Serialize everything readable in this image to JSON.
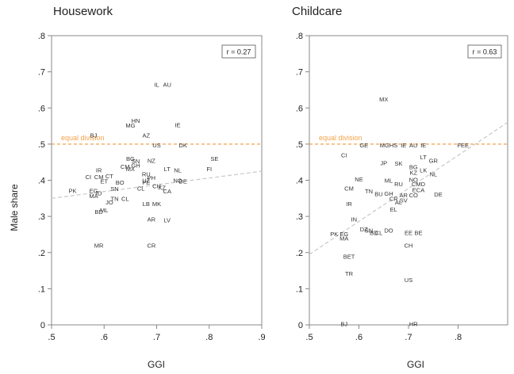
{
  "figure": {
    "ylabel": "Male share",
    "colors": {
      "ref_line": "#f5a24a",
      "fit_line": "#c8c8c8",
      "frame": "#888888",
      "text": "#222222"
    }
  },
  "chart_data": [
    {
      "type": "scatter",
      "title": "Housework",
      "xlabel": "GGI",
      "ylabel": "Male share",
      "xlim": [
        0.5,
        0.9
      ],
      "ylim": [
        0,
        0.8
      ],
      "xticks": [
        ".5",
        ".6",
        ".7",
        ".8",
        ".9"
      ],
      "yticks": [
        "0",
        ".1",
        ".2",
        ".3",
        ".4",
        ".5",
        ".6",
        ".7",
        ".8"
      ],
      "annotation": "r = 0.27",
      "reference_line": {
        "y": 0.5,
        "label": "equal division"
      },
      "fit_line": {
        "x": [
          0.5,
          0.9
        ],
        "y": [
          0.35,
          0.425
        ]
      },
      "points": [
        {
          "label": "IL",
          "x": 0.7,
          "y": 0.665
        },
        {
          "label": "AU",
          "x": 0.72,
          "y": 0.665
        },
        {
          "label": "HN",
          "x": 0.66,
          "y": 0.565
        },
        {
          "label": "MG",
          "x": 0.65,
          "y": 0.552
        },
        {
          "label": "IE",
          "x": 0.74,
          "y": 0.553
        },
        {
          "label": "BJ",
          "x": 0.58,
          "y": 0.525
        },
        {
          "label": "AZ",
          "x": 0.68,
          "y": 0.525
        },
        {
          "label": "US",
          "x": 0.7,
          "y": 0.497
        },
        {
          "label": "DK",
          "x": 0.75,
          "y": 0.497
        },
        {
          "label": "SE",
          "x": 0.81,
          "y": 0.46
        },
        {
          "label": "FI",
          "x": 0.8,
          "y": 0.432
        },
        {
          "label": "BG",
          "x": 0.65,
          "y": 0.46
        },
        {
          "label": "SN",
          "x": 0.66,
          "y": 0.454
        },
        {
          "label": "NZ",
          "x": 0.69,
          "y": 0.455
        },
        {
          "label": "GH",
          "x": 0.66,
          "y": 0.442
        },
        {
          "label": "CM",
          "x": 0.64,
          "y": 0.438
        },
        {
          "label": "MX",
          "x": 0.65,
          "y": 0.432
        },
        {
          "label": "LT",
          "x": 0.72,
          "y": 0.432
        },
        {
          "label": "NL",
          "x": 0.74,
          "y": 0.428
        },
        {
          "label": "IR",
          "x": 0.59,
          "y": 0.428
        },
        {
          "label": "CI",
          "x": 0.57,
          "y": 0.41
        },
        {
          "label": "CM",
          "x": 0.59,
          "y": 0.41
        },
        {
          "label": "CT",
          "x": 0.61,
          "y": 0.412
        },
        {
          "label": "ET",
          "x": 0.6,
          "y": 0.398
        },
        {
          "label": "RU",
          "x": 0.68,
          "y": 0.418
        },
        {
          "label": "PH",
          "x": 0.69,
          "y": 0.408
        },
        {
          "label": "UZ",
          "x": 0.68,
          "y": 0.4
        },
        {
          "label": "NO",
          "x": 0.74,
          "y": 0.4
        },
        {
          "label": "DE",
          "x": 0.75,
          "y": 0.398
        },
        {
          "label": "BO",
          "x": 0.63,
          "y": 0.395
        },
        {
          "label": "PE",
          "x": 0.68,
          "y": 0.395
        },
        {
          "label": "CH",
          "x": 0.7,
          "y": 0.385
        },
        {
          "label": "SN",
          "x": 0.62,
          "y": 0.377
        },
        {
          "label": "CL",
          "x": 0.67,
          "y": 0.378
        },
        {
          "label": "CA",
          "x": 0.72,
          "y": 0.37
        },
        {
          "label": "KZ",
          "x": 0.71,
          "y": 0.38
        },
        {
          "label": "PK",
          "x": 0.54,
          "y": 0.372
        },
        {
          "label": "EG",
          "x": 0.58,
          "y": 0.372
        },
        {
          "label": "ID",
          "x": 0.59,
          "y": 0.365
        },
        {
          "label": "MA",
          "x": 0.58,
          "y": 0.357
        },
        {
          "label": "TN",
          "x": 0.62,
          "y": 0.35
        },
        {
          "label": "CL",
          "x": 0.64,
          "y": 0.35
        },
        {
          "label": "JO",
          "x": 0.61,
          "y": 0.34
        },
        {
          "label": "LB",
          "x": 0.68,
          "y": 0.335
        },
        {
          "label": "MK",
          "x": 0.7,
          "y": 0.335
        },
        {
          "label": "ML",
          "x": 0.6,
          "y": 0.318
        },
        {
          "label": "BD",
          "x": 0.59,
          "y": 0.313
        },
        {
          "label": "AR",
          "x": 0.69,
          "y": 0.293
        },
        {
          "label": "LV",
          "x": 0.72,
          "y": 0.29
        },
        {
          "label": "MR",
          "x": 0.59,
          "y": 0.22
        },
        {
          "label": "CR",
          "x": 0.69,
          "y": 0.22
        }
      ]
    },
    {
      "type": "scatter",
      "title": "Childcare",
      "xlabel": "GGI",
      "ylabel": "Male share",
      "xlim": [
        0.5,
        0.9
      ],
      "ylim": [
        0,
        0.8
      ],
      "xticks": [
        ".5",
        ".6",
        ".7",
        ".8"
      ],
      "yticks": [
        "0",
        ".1",
        ".2",
        ".3",
        ".4",
        ".5",
        ".6",
        ".7",
        ".8"
      ],
      "annotation": "r = 0.63",
      "reference_line": {
        "y": 0.5,
        "label": "equal division"
      },
      "fit_line": {
        "x": [
          0.5,
          0.9
        ],
        "y": [
          0.195,
          0.56
        ]
      },
      "points": [
        {
          "label": "MX",
          "x": 0.65,
          "y": 0.625
        },
        {
          "label": "CI",
          "x": 0.57,
          "y": 0.47
        },
        {
          "label": "GE",
          "x": 0.61,
          "y": 0.498
        },
        {
          "label": "MGHS",
          "x": 0.66,
          "y": 0.498
        },
        {
          "label": "IE",
          "x": 0.69,
          "y": 0.498
        },
        {
          "label": "AU",
          "x": 0.71,
          "y": 0.498
        },
        {
          "label": "IE",
          "x": 0.73,
          "y": 0.498
        },
        {
          "label": "FEE",
          "x": 0.81,
          "y": 0.498
        },
        {
          "label": "LT",
          "x": 0.73,
          "y": 0.465
        },
        {
          "label": "GR",
          "x": 0.75,
          "y": 0.455
        },
        {
          "label": "JP",
          "x": 0.65,
          "y": 0.448
        },
        {
          "label": "SK",
          "x": 0.68,
          "y": 0.447
        },
        {
          "label": "BG",
          "x": 0.71,
          "y": 0.437
        },
        {
          "label": "LK",
          "x": 0.73,
          "y": 0.428
        },
        {
          "label": "KZ",
          "x": 0.71,
          "y": 0.422
        },
        {
          "label": "NL",
          "x": 0.75,
          "y": 0.418
        },
        {
          "label": "NE",
          "x": 0.6,
          "y": 0.403
        },
        {
          "label": "ML",
          "x": 0.66,
          "y": 0.4
        },
        {
          "label": "NO",
          "x": 0.71,
          "y": 0.402
        },
        {
          "label": "RU",
          "x": 0.68,
          "y": 0.39
        },
        {
          "label": "CMD",
          "x": 0.72,
          "y": 0.39
        },
        {
          "label": "CM",
          "x": 0.58,
          "y": 0.378
        },
        {
          "label": "TN",
          "x": 0.62,
          "y": 0.37
        },
        {
          "label": "ECA",
          "x": 0.72,
          "y": 0.374
        },
        {
          "label": "BU",
          "x": 0.64,
          "y": 0.363
        },
        {
          "label": "GH",
          "x": 0.66,
          "y": 0.364
        },
        {
          "label": "AR",
          "x": 0.69,
          "y": 0.36
        },
        {
          "label": "CO",
          "x": 0.71,
          "y": 0.36
        },
        {
          "label": "DE",
          "x": 0.76,
          "y": 0.362
        },
        {
          "label": "CR",
          "x": 0.67,
          "y": 0.35
        },
        {
          "label": "AL",
          "x": 0.68,
          "y": 0.34
        },
        {
          "label": "SV",
          "x": 0.69,
          "y": 0.345
        },
        {
          "label": "IR",
          "x": 0.58,
          "y": 0.335
        },
        {
          "label": "EL",
          "x": 0.67,
          "y": 0.32
        },
        {
          "label": "IN",
          "x": 0.59,
          "y": 0.293
        },
        {
          "label": "DZ",
          "x": 0.61,
          "y": 0.265
        },
        {
          "label": "SN",
          "x": 0.62,
          "y": 0.262
        },
        {
          "label": "DO",
          "x": 0.66,
          "y": 0.262
        },
        {
          "label": "BD",
          "x": 0.63,
          "y": 0.255
        },
        {
          "label": "CL",
          "x": 0.64,
          "y": 0.255
        },
        {
          "label": "EE",
          "x": 0.7,
          "y": 0.255
        },
        {
          "label": "BE",
          "x": 0.72,
          "y": 0.255
        },
        {
          "label": "PK",
          "x": 0.55,
          "y": 0.252
        },
        {
          "label": "EG",
          "x": 0.57,
          "y": 0.252
        },
        {
          "label": "MA",
          "x": 0.57,
          "y": 0.24
        },
        {
          "label": "CH",
          "x": 0.7,
          "y": 0.22
        },
        {
          "label": "BET",
          "x": 0.58,
          "y": 0.19
        },
        {
          "label": "TR",
          "x": 0.58,
          "y": 0.143
        },
        {
          "label": "US",
          "x": 0.7,
          "y": 0.125
        },
        {
          "label": "BJ",
          "x": 0.57,
          "y": 0.003
        },
        {
          "label": "HR",
          "x": 0.71,
          "y": 0.003
        }
      ]
    }
  ]
}
